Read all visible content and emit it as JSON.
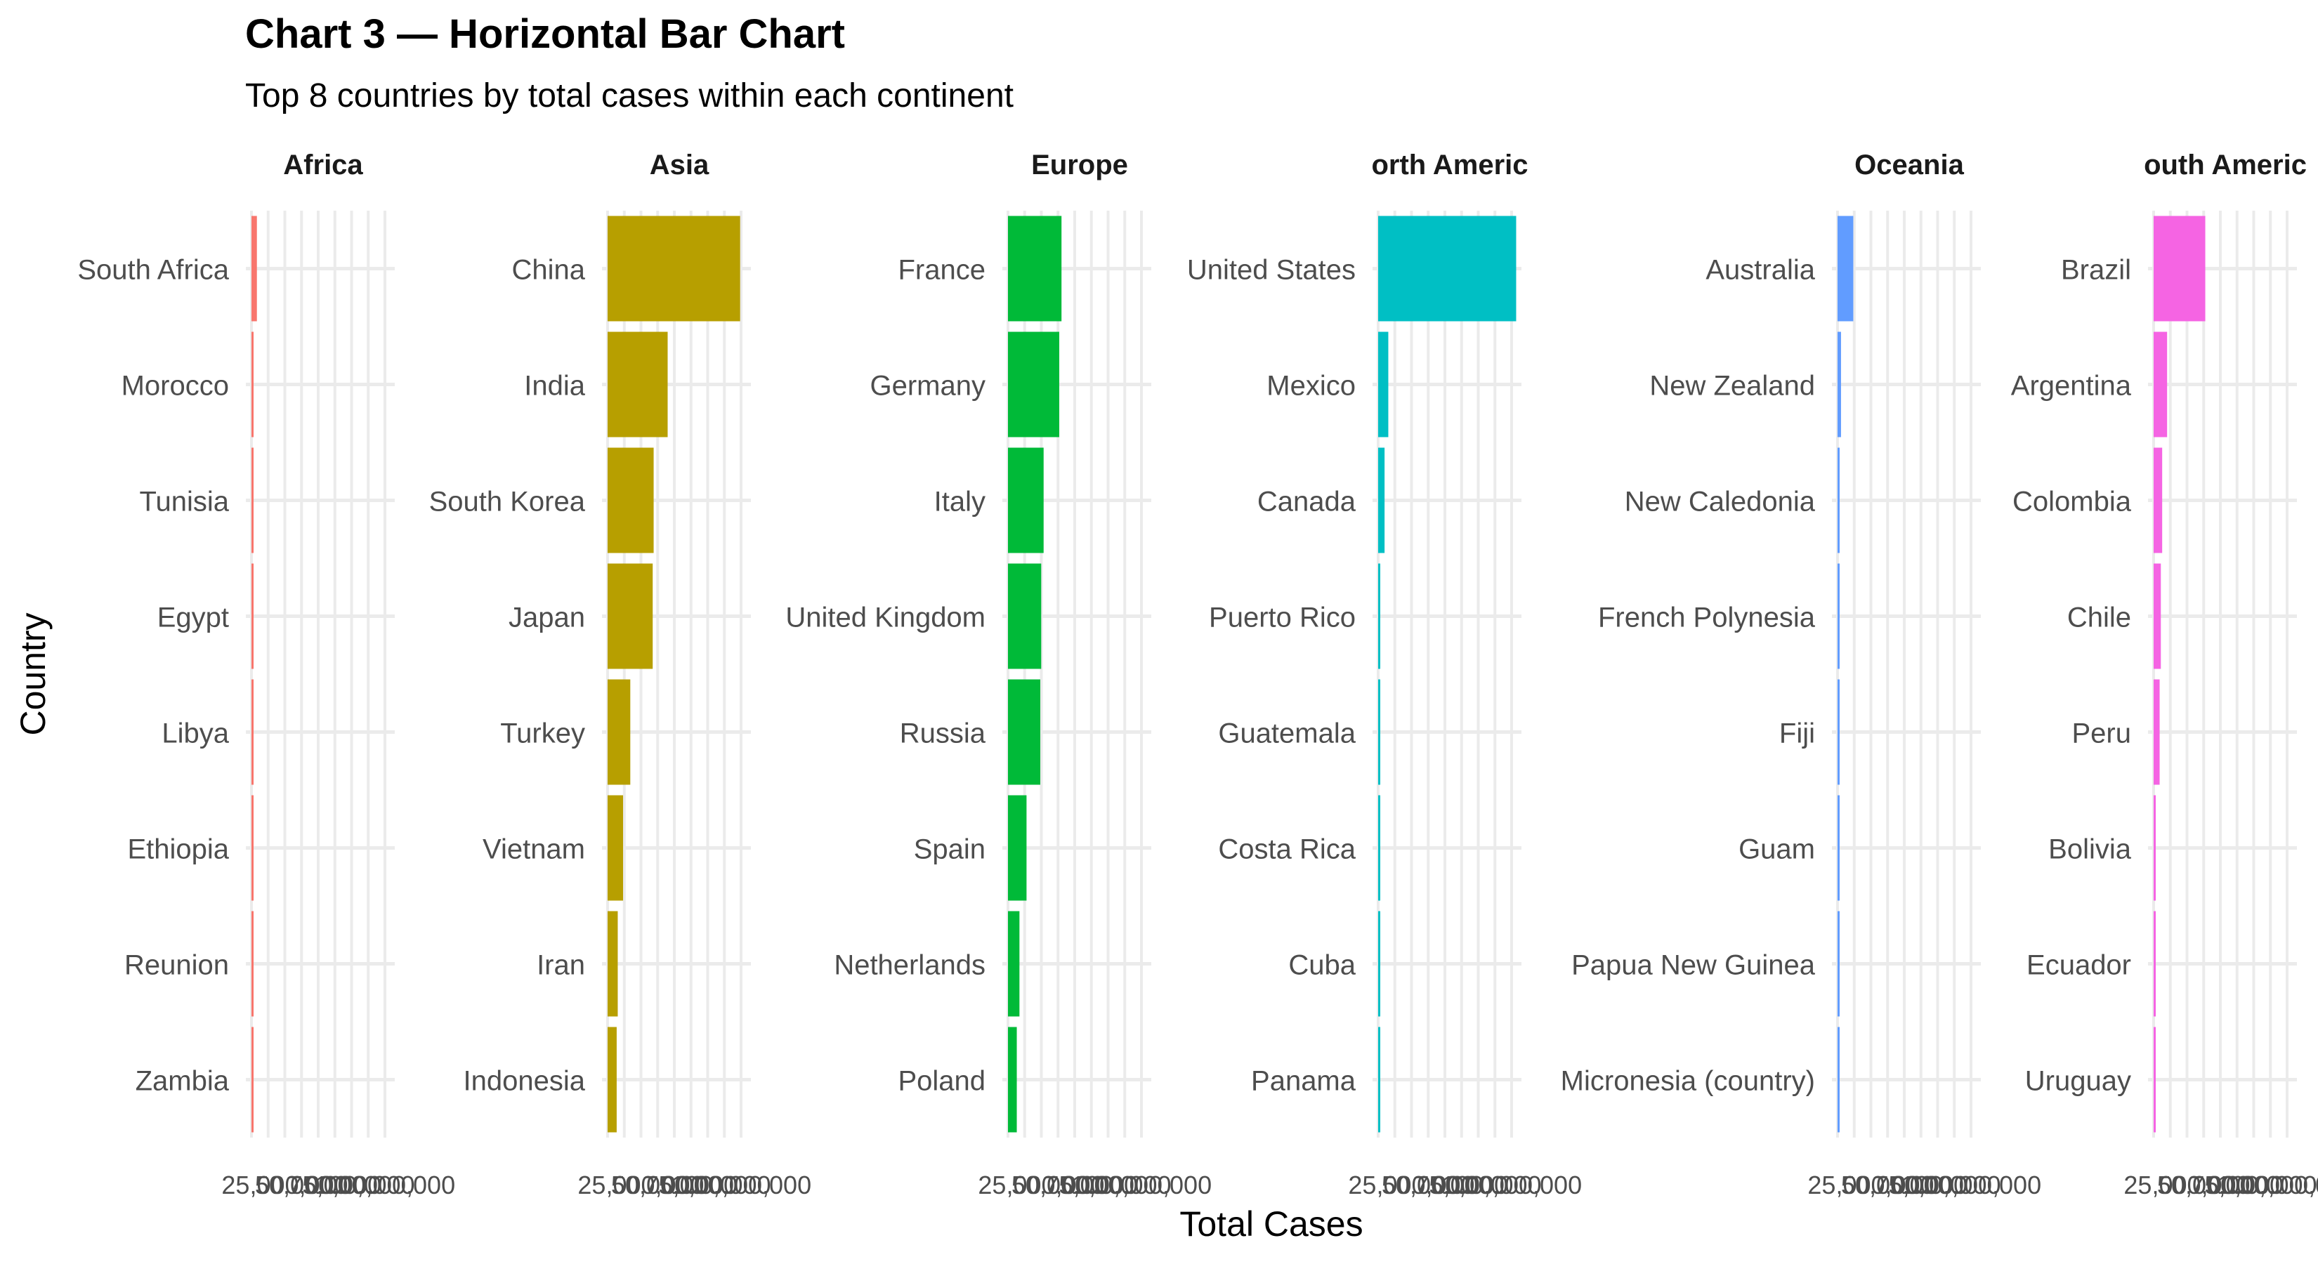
{
  "chart_data": {
    "type": "bar",
    "orientation": "horizontal",
    "title": "Chart 3 — Horizontal Bar Chart",
    "subtitle": "Top 8 countries by total cases within each continent",
    "xlabel": "Total Cases",
    "ylabel": "Country",
    "xlim": [
      0,
      100000000
    ],
    "x_ticks": [
      25000000,
      50000000,
      75000000,
      100000000
    ],
    "x_tick_labels": [
      "25,000,000",
      "50,000,000",
      "75,000,000",
      "100,000,000"
    ],
    "grid": true,
    "legend": "none",
    "facets": [
      {
        "name": "Africa",
        "strip_label": "Africa",
        "color": "#F8766D",
        "categories": [
          "South Africa",
          "Morocco",
          "Tunisia",
          "Egypt",
          "Libya",
          "Ethiopia",
          "Reunion",
          "Zambia"
        ],
        "values": [
          4070000,
          1270000,
          1150000,
          516000,
          507000,
          500000,
          494000,
          349000
        ]
      },
      {
        "name": "Asia",
        "strip_label": "Asia",
        "color": "#B79F00",
        "categories": [
          "China",
          "India",
          "South Korea",
          "Japan",
          "Turkey",
          "Vietnam",
          "Iran",
          "Indonesia"
        ],
        "values": [
          99300000,
          45000000,
          34500000,
          33800000,
          17000000,
          11600000,
          7600000,
          6800000
        ]
      },
      {
        "name": "Europe",
        "strip_label": "Europe",
        "color": "#00BA38",
        "categories": [
          "France",
          "Germany",
          "Italy",
          "United Kingdom",
          "Russia",
          "Spain",
          "Netherlands",
          "Poland"
        ],
        "values": [
          40100000,
          38400000,
          26700000,
          24900000,
          24200000,
          13900000,
          8600000,
          6600000
        ]
      },
      {
        "name": "North America",
        "strip_label": "orth Americ",
        "color": "#00BFC4",
        "categories": [
          "United States",
          "Mexico",
          "Canada",
          "Puerto Rico",
          "Guatemala",
          "Costa Rica",
          "Cuba",
          "Panama"
        ],
        "values": [
          103400000,
          7600000,
          4800000,
          1250000,
          1290000,
          1240000,
          1110000,
          1040000
        ]
      },
      {
        "name": "Oceania",
        "strip_label": "Oceania",
        "color": "#619CFF",
        "categories": [
          "Australia",
          "New Zealand",
          "New Caledonia",
          "French Polynesia",
          "Fiji",
          "Guam",
          "Papua New Guinea",
          "Micronesia (country)"
        ],
        "values": [
          11800000,
          2600000,
          80000,
          79000,
          69000,
          52000,
          47000,
          26000
        ]
      },
      {
        "name": "South America",
        "strip_label": "outh Americ",
        "color": "#F564E3",
        "categories": [
          "Brazil",
          "Argentina",
          "Colombia",
          "Chile",
          "Peru",
          "Bolivia",
          "Ecuador",
          "Uruguay"
        ],
        "values": [
          38700000,
          10100000,
          6400000,
          5400000,
          4500000,
          1200000,
          1100000,
          1040000
        ]
      }
    ]
  }
}
